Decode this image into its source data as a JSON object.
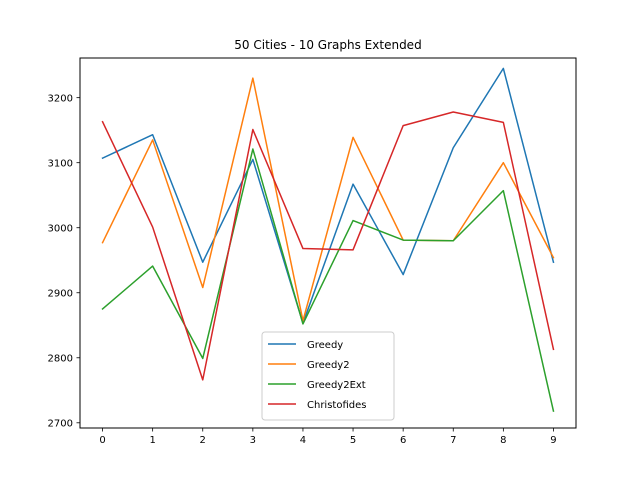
{
  "chart_data": {
    "type": "line",
    "title": "50 Cities - 10 Graphs Extended",
    "xlabel": "",
    "ylabel": "",
    "x": [
      0,
      1,
      2,
      3,
      4,
      5,
      6,
      7,
      8,
      9
    ],
    "xticks": [
      "0",
      "1",
      "2",
      "3",
      "4",
      "5",
      "6",
      "7",
      "8",
      "9"
    ],
    "yticks": [
      2700,
      2800,
      2900,
      3000,
      3100,
      3200
    ],
    "ylim": [
      2692,
      3261
    ],
    "xlim": [
      -0.45,
      9.45
    ],
    "grid": false,
    "legend_position": "lower center",
    "series": [
      {
        "name": "Greedy",
        "color": "#1f77b4",
        "values": [
          3107,
          3143,
          2947,
          3105,
          2853,
          3067,
          2928,
          3123,
          3245,
          2947
        ]
      },
      {
        "name": "Greedy2",
        "color": "#ff7f0e",
        "values": [
          2977,
          3135,
          2908,
          3230,
          2857,
          3139,
          2981,
          2980,
          3100,
          2954
        ]
      },
      {
        "name": "Greedy2Ext",
        "color": "#2ca02c",
        "values": [
          2875,
          2941,
          2799,
          3121,
          2852,
          3011,
          2981,
          2980,
          3057,
          2718
        ]
      },
      {
        "name": "Christofides",
        "color": "#d62728",
        "values": [
          3163,
          3001,
          2766,
          3151,
          2968,
          2966,
          3157,
          3178,
          3162,
          2813
        ]
      }
    ]
  }
}
